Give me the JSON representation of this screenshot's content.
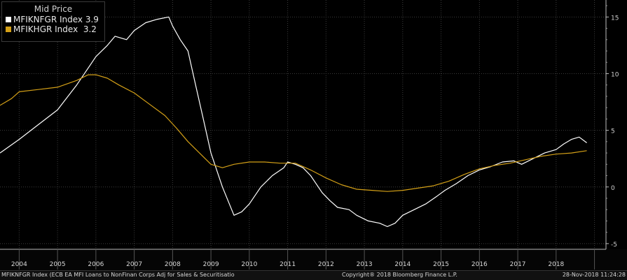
{
  "legend": {
    "title": "Mid Price",
    "series": [
      {
        "name": "MFIKNFGR Index",
        "value": "3.9",
        "color": "#ffffff"
      },
      {
        "name": "MFIKHGR Index",
        "value": "3.2",
        "color": "#d4a017"
      }
    ]
  },
  "footer": {
    "description": "MFIKNFGR Index (ECB EA MFI Loans to NonFinan Corps Adj for Sales & Securitisatio",
    "copyright": "Copyright® 2018 Bloomberg Finance L.P.",
    "timestamp": "28-Nov-2018 11:24:28"
  },
  "chart_data": {
    "type": "line",
    "x_ticks": [
      "2004",
      "2005",
      "2006",
      "2007",
      "2008",
      "2009",
      "2010",
      "2011",
      "2012",
      "2013",
      "2014",
      "2015",
      "2016",
      "2017",
      "2018"
    ],
    "y_ticks": [
      -5,
      0,
      5,
      10,
      15
    ],
    "xlim": [
      2003.5,
      2019.3
    ],
    "ylim": [
      -5.5,
      16.5
    ],
    "grid": true,
    "series": [
      {
        "name": "MFIKNFGR Index",
        "color": "#ffffff",
        "points": [
          [
            2003.5,
            3.0
          ],
          [
            2004.0,
            4.2
          ],
          [
            2004.5,
            5.5
          ],
          [
            2005.0,
            6.8
          ],
          [
            2005.5,
            9.0
          ],
          [
            2006.0,
            11.5
          ],
          [
            2006.3,
            12.5
          ],
          [
            2006.5,
            13.3
          ],
          [
            2006.8,
            13.0
          ],
          [
            2007.0,
            13.8
          ],
          [
            2007.3,
            14.5
          ],
          [
            2007.6,
            14.8
          ],
          [
            2007.9,
            15.0
          ],
          [
            2008.0,
            14.2
          ],
          [
            2008.2,
            13.0
          ],
          [
            2008.4,
            12.0
          ],
          [
            2008.6,
            9.0
          ],
          [
            2008.8,
            6.0
          ],
          [
            2009.0,
            3.0
          ],
          [
            2009.3,
            0.0
          ],
          [
            2009.6,
            -2.5
          ],
          [
            2009.8,
            -2.2
          ],
          [
            2010.0,
            -1.5
          ],
          [
            2010.3,
            0.0
          ],
          [
            2010.6,
            1.0
          ],
          [
            2010.9,
            1.7
          ],
          [
            2011.0,
            2.2
          ],
          [
            2011.2,
            2.0
          ],
          [
            2011.4,
            1.7
          ],
          [
            2011.6,
            1.0
          ],
          [
            2011.9,
            -0.5
          ],
          [
            2012.1,
            -1.2
          ],
          [
            2012.3,
            -1.8
          ],
          [
            2012.6,
            -2.0
          ],
          [
            2012.8,
            -2.5
          ],
          [
            2013.1,
            -3.0
          ],
          [
            2013.4,
            -3.2
          ],
          [
            2013.6,
            -3.5
          ],
          [
            2013.8,
            -3.2
          ],
          [
            2014.0,
            -2.5
          ],
          [
            2014.3,
            -2.0
          ],
          [
            2014.6,
            -1.5
          ],
          [
            2014.9,
            -0.8
          ],
          [
            2015.1,
            -0.3
          ],
          [
            2015.4,
            0.3
          ],
          [
            2015.7,
            1.0
          ],
          [
            2016.0,
            1.5
          ],
          [
            2016.3,
            1.8
          ],
          [
            2016.6,
            2.2
          ],
          [
            2016.9,
            2.3
          ],
          [
            2017.1,
            2.0
          ],
          [
            2017.4,
            2.5
          ],
          [
            2017.7,
            3.0
          ],
          [
            2018.0,
            3.3
          ],
          [
            2018.2,
            3.8
          ],
          [
            2018.4,
            4.2
          ],
          [
            2018.6,
            4.4
          ],
          [
            2018.8,
            3.9
          ]
        ]
      },
      {
        "name": "MFIKHGR Index",
        "color": "#d4a017",
        "points": [
          [
            2003.5,
            7.2
          ],
          [
            2003.8,
            7.8
          ],
          [
            2004.0,
            8.4
          ],
          [
            2004.5,
            8.6
          ],
          [
            2005.0,
            8.8
          ],
          [
            2005.5,
            9.4
          ],
          [
            2005.8,
            9.9
          ],
          [
            2006.0,
            9.9
          ],
          [
            2006.3,
            9.6
          ],
          [
            2006.6,
            9.0
          ],
          [
            2007.0,
            8.3
          ],
          [
            2007.4,
            7.3
          ],
          [
            2007.8,
            6.3
          ],
          [
            2008.1,
            5.2
          ],
          [
            2008.4,
            4.0
          ],
          [
            2008.7,
            3.0
          ],
          [
            2009.0,
            2.0
          ],
          [
            2009.3,
            1.7
          ],
          [
            2009.6,
            2.0
          ],
          [
            2010.0,
            2.2
          ],
          [
            2010.4,
            2.2
          ],
          [
            2010.8,
            2.1
          ],
          [
            2011.2,
            2.1
          ],
          [
            2011.6,
            1.5
          ],
          [
            2012.0,
            0.8
          ],
          [
            2012.4,
            0.2
          ],
          [
            2012.8,
            -0.2
          ],
          [
            2013.2,
            -0.3
          ],
          [
            2013.6,
            -0.4
          ],
          [
            2014.0,
            -0.3
          ],
          [
            2014.4,
            -0.1
          ],
          [
            2014.8,
            0.1
          ],
          [
            2015.2,
            0.5
          ],
          [
            2015.6,
            1.1
          ],
          [
            2016.0,
            1.6
          ],
          [
            2016.4,
            1.9
          ],
          [
            2016.8,
            2.1
          ],
          [
            2017.2,
            2.4
          ],
          [
            2017.6,
            2.7
          ],
          [
            2018.0,
            2.9
          ],
          [
            2018.4,
            3.0
          ],
          [
            2018.8,
            3.2
          ]
        ]
      }
    ]
  }
}
